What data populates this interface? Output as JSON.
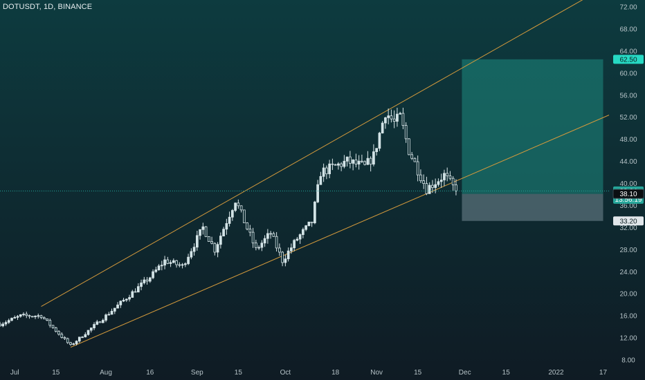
{
  "title": "DOTUSDT, 1D, BINANCE",
  "colors": {
    "background_top": "#0d3a3e",
    "background_bottom": "#0e1c24",
    "up_candle": "#cfe3e6",
    "down_candle": "#0b2a30",
    "wick": "#dbe7ea",
    "channel_line": "#d49a3c",
    "target_zone": "#1e8a80",
    "stop_zone": "#8a9ea8",
    "price_line": "#26a69a",
    "axis_text": "#b7c4c8",
    "tag_target_bg": "#26d9c3",
    "tag_price_bg": "#26a69a",
    "tag_entry_bg": "#0b0f12",
    "tag_stop_bg": "#e0e6ea"
  },
  "chart_data": {
    "type": "candlestick",
    "symbol": "DOTUSDT",
    "interval": "1D",
    "exchange": "BINANCE",
    "y_axis": {
      "ticks": [
        "72.00",
        "68.00",
        "64.00",
        "60.00",
        "56.00",
        "52.00",
        "48.00",
        "44.00",
        "40.00",
        "36.00",
        "32.00",
        "28.00",
        "24.00",
        "20.00",
        "16.00",
        "12.00",
        "8.00"
      ],
      "range": [
        8,
        72
      ]
    },
    "x_axis": {
      "ticks": [
        {
          "label": "Jul",
          "date": "2021-07-01"
        },
        {
          "label": "15",
          "date": "2021-07-15"
        },
        {
          "label": "Aug",
          "date": "2021-08-01"
        },
        {
          "label": "16",
          "date": "2021-08-16"
        },
        {
          "label": "Sep",
          "date": "2021-09-01"
        },
        {
          "label": "15",
          "date": "2021-09-15"
        },
        {
          "label": "Oct",
          "date": "2021-10-01"
        },
        {
          "label": "18",
          "date": "2021-10-18"
        },
        {
          "label": "Nov",
          "date": "2021-11-01"
        },
        {
          "label": "15",
          "date": "2021-11-15"
        },
        {
          "label": "Dec",
          "date": "2021-12-01"
        },
        {
          "label": "15",
          "date": "2021-12-15"
        },
        {
          "label": "2022",
          "date": "2022-01-01"
        },
        {
          "label": "17",
          "date": "2022-01-17"
        }
      ],
      "range": [
        "2021-06-26",
        "2022-01-19"
      ]
    },
    "price_tags": [
      {
        "label": "62.50",
        "value": 62.5,
        "kind": "target"
      },
      {
        "label": "38.64",
        "value": 38.64,
        "kind": "price"
      },
      {
        "label": "13:56:19",
        "value": 38.64,
        "kind": "countdown"
      },
      {
        "label": "38.10",
        "value": 38.1,
        "kind": "entry"
      },
      {
        "label": "33.20",
        "value": 33.2,
        "kind": "stop"
      }
    ],
    "position": {
      "entry": 38.1,
      "target": 62.5,
      "stop": 33.2,
      "start": "2021-11-30",
      "end": "2022-01-17"
    },
    "channel_lines": [
      {
        "from": {
          "date": "2021-07-10",
          "value": 17.7
        },
        "to": {
          "date": "2022-01-19",
          "value": 76.0
        }
      },
      {
        "from": {
          "date": "2021-07-20",
          "value": 10.3
        },
        "to": {
          "date": "2022-01-19",
          "value": 52.4
        }
      }
    ],
    "anchors": [
      {
        "date": "2021-06-26",
        "value": 14.5
      },
      {
        "date": "2021-07-03",
        "value": 16.0
      },
      {
        "date": "2021-07-10",
        "value": 16.0
      },
      {
        "date": "2021-07-20",
        "value": 10.6
      },
      {
        "date": "2021-08-01",
        "value": 16.0
      },
      {
        "date": "2021-08-16",
        "value": 23.0
      },
      {
        "date": "2021-08-21",
        "value": 26.0
      },
      {
        "date": "2021-08-27",
        "value": 25.0
      },
      {
        "date": "2021-09-03",
        "value": 32.0
      },
      {
        "date": "2021-09-07",
        "value": 28.0
      },
      {
        "date": "2021-09-14",
        "value": 37.0
      },
      {
        "date": "2021-09-21",
        "value": 28.0
      },
      {
        "date": "2021-09-26",
        "value": 31.0
      },
      {
        "date": "2021-09-30",
        "value": 26.0
      },
      {
        "date": "2021-10-05",
        "value": 30.0
      },
      {
        "date": "2021-10-10",
        "value": 33.0
      },
      {
        "date": "2021-10-13",
        "value": 42.0
      },
      {
        "date": "2021-10-22",
        "value": 44.0
      },
      {
        "date": "2021-10-28",
        "value": 43.0
      },
      {
        "date": "2021-10-31",
        "value": 45.0
      },
      {
        "date": "2021-11-04",
        "value": 53.0
      },
      {
        "date": "2021-11-07",
        "value": 51.0
      },
      {
        "date": "2021-11-09",
        "value": 52.0
      },
      {
        "date": "2021-11-12",
        "value": 46.0
      },
      {
        "date": "2021-11-18",
        "value": 39.0
      },
      {
        "date": "2021-11-24",
        "value": 41.5
      },
      {
        "date": "2021-11-28",
        "value": 38.64
      }
    ],
    "last_price": 38.64
  }
}
